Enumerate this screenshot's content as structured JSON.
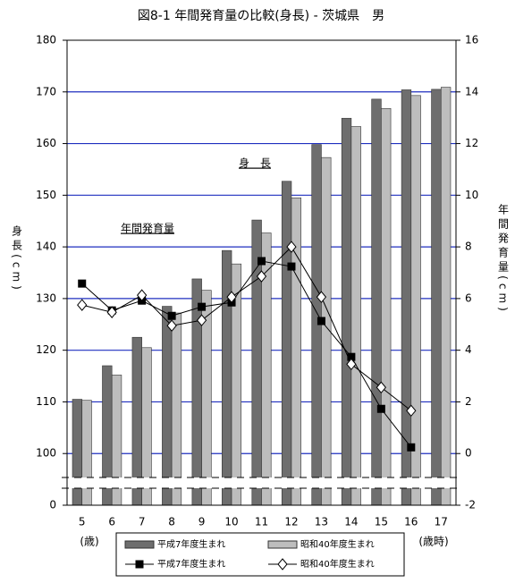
{
  "chart_data": {
    "type": "bar",
    "title": "図8-1 年間発育量の比較(身長) - 茨城県　男",
    "y_label": "身長(cm)",
    "y2_label": "年間発育量(cm)",
    "x_label_left": "(歳)",
    "x_label_right": "(歳時)",
    "annotations": [
      "身　長",
      "年間発育量"
    ],
    "categories": [
      "5",
      "6",
      "7",
      "8",
      "9",
      "10",
      "11",
      "12",
      "13",
      "14",
      "15",
      "16",
      "17"
    ],
    "ylim": [
      90,
      180
    ],
    "yticks": [
      {
        "value": 90,
        "label": "0"
      },
      100,
      110,
      120,
      130,
      140,
      150,
      160,
      170,
      180
    ],
    "y2lim": [
      -2,
      16
    ],
    "y2ticks": [
      -2,
      0,
      2,
      4,
      6,
      8,
      10,
      12,
      14,
      16
    ],
    "grid": true,
    "grid_color": "#1f2fbf",
    "series": [
      {
        "name": "平成7年度生まれ",
        "type": "bar",
        "color": "#6e6e6e",
        "values": [
          110.5,
          117,
          122.5,
          128.5,
          133.8,
          139.3,
          145.2,
          152.7,
          159.8,
          164.9,
          168.6,
          170.4,
          170.5
        ]
      },
      {
        "name": "昭和40年度生まれ",
        "type": "bar",
        "color": "#bdbdbd",
        "values": [
          110.3,
          115.2,
          120.5,
          127.2,
          131.6,
          136.7,
          142.7,
          149.5,
          157.3,
          163.3,
          166.8,
          169.3,
          170.9
        ]
      },
      {
        "name": "平成7年度生まれ",
        "type": "line",
        "axis": "y2",
        "color": "#000000",
        "marker": "square",
        "values": [
          6.58,
          5.54,
          5.92,
          5.33,
          5.68,
          5.85,
          7.45,
          7.24,
          5.13,
          3.74,
          1.73,
          0.24,
          null
        ]
      },
      {
        "name": "昭和40年度生まれ",
        "type": "line",
        "axis": "y2",
        "color": "#000000",
        "marker": "diamond",
        "values": [
          5.75,
          5.47,
          6.13,
          4.95,
          5.16,
          6.06,
          6.86,
          8.0,
          6.06,
          3.46,
          2.56,
          1.66,
          null
        ]
      }
    ]
  }
}
